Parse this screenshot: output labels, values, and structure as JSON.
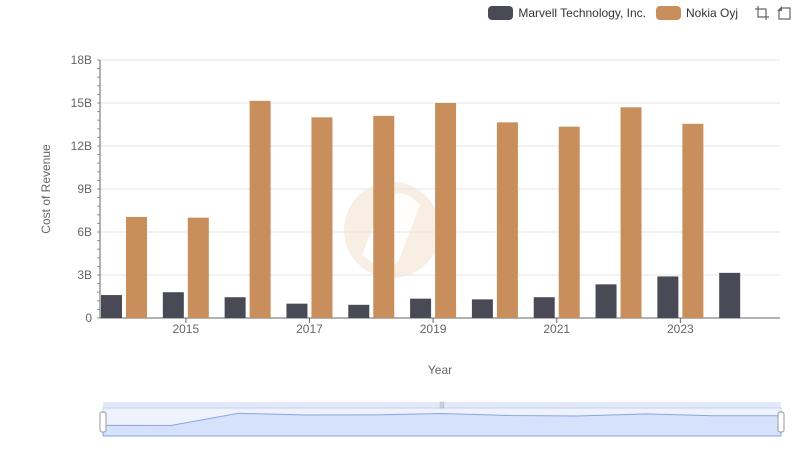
{
  "chart_data": {
    "type": "bar",
    "xlabel": "Year",
    "ylabel": "Cost of Revenue",
    "ylim": [
      0,
      18000000000
    ],
    "y_ticks": [
      "0",
      "3B",
      "6B",
      "9B",
      "12B",
      "15B",
      "18B"
    ],
    "x_tick_labels": [
      "2015",
      "2017",
      "2019",
      "2021",
      "2023"
    ],
    "categories": [
      "2014",
      "2015",
      "2016",
      "2017",
      "2018",
      "2019",
      "2020",
      "2021",
      "2022",
      "2023",
      "2024"
    ],
    "series": [
      {
        "name": "Marvell Technology, Inc.",
        "color": "#4a4a56",
        "values": [
          1600000000,
          1800000000,
          1450000000,
          1000000000,
          920000000,
          1350000000,
          1300000000,
          1450000000,
          2350000000,
          2900000000,
          3150000000
        ]
      },
      {
        "name": "Nokia Oyj",
        "color": "#c88f5c",
        "values": [
          7050000000,
          7000000000,
          15150000000,
          14000000000,
          14100000000,
          15000000000,
          13650000000,
          13350000000,
          14700000000,
          13550000000,
          null
        ]
      }
    ],
    "grid": true,
    "legend_position": "top-right"
  },
  "navigator": {
    "color": "#d6e1fb",
    "line": "#8aa4e6"
  }
}
